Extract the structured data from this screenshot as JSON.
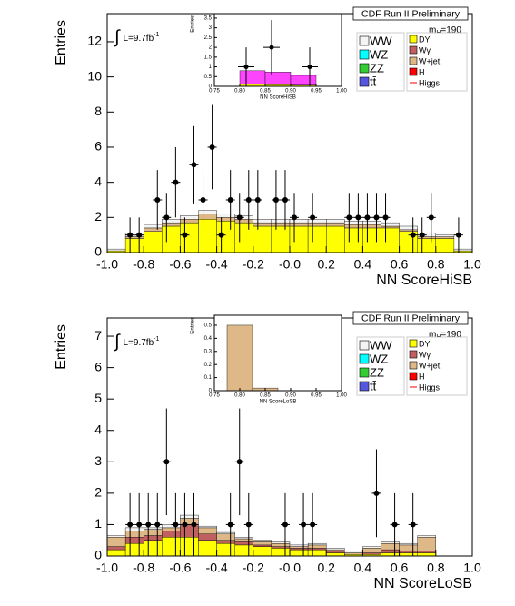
{
  "chart_data": [
    {
      "type": "histogram",
      "title": "CDF Run II Preliminary",
      "x_label": "NN ScoreHiSB",
      "y_label": "Entries",
      "lumi": [
        "∫",
        "L=9.7fb",
        "-1"
      ],
      "mass": [
        "m",
        "H",
        "=190"
      ],
      "xlim": [
        -1,
        1
      ],
      "ylim": [
        0,
        13.6
      ],
      "xticks": [
        {
          "value": -1,
          "label": "-1.0"
        },
        {
          "value": -0.8,
          "label": "-0.8"
        },
        {
          "value": -0.6,
          "label": "-0.6"
        },
        {
          "value": -0.4,
          "label": "-0.4"
        },
        {
          "value": -0.2,
          "label": "-0.2"
        },
        {
          "value": 0,
          "label": "-0.0"
        },
        {
          "value": 0.2,
          "label": "0.2"
        },
        {
          "value": 0.4,
          "label": "0.4"
        },
        {
          "value": 0.6,
          "label": "0.6"
        },
        {
          "value": 0.8,
          "label": "0.8"
        },
        {
          "value": 1,
          "label": "1.0"
        }
      ],
      "yticks": [
        0,
        2,
        4,
        6,
        8,
        10,
        12
      ],
      "bins": [
        -1,
        -0.9,
        -0.8,
        -0.7,
        -0.6,
        -0.5,
        -0.4,
        -0.3,
        -0.2,
        -0.1,
        0,
        0.1,
        0.2,
        0.3,
        0.4,
        0.5,
        0.6,
        0.7,
        0.8,
        0.9,
        1
      ],
      "series": [
        {
          "name": "DY",
          "color": "#ffff00",
          "values": [
            0.1,
            0.8,
            1.2,
            1.5,
            1.7,
            1.9,
            1.8,
            1.7,
            1.5,
            1.5,
            1.5,
            1.5,
            1.5,
            1.4,
            1.4,
            1.4,
            1.2,
            0.8,
            0.8,
            0.1
          ]
        },
        {
          "name": "Wγ",
          "color": "#c06060",
          "values": [
            0,
            0,
            0,
            0,
            0,
            0,
            0,
            0,
            0,
            0,
            0,
            0,
            0,
            0,
            0,
            0,
            0,
            0,
            0,
            0
          ]
        },
        {
          "name": "W+jet",
          "color": "#deb887",
          "values": [
            0,
            0.1,
            0.2,
            0.2,
            0.2,
            0.3,
            0.2,
            0.2,
            0.2,
            0.2,
            0.2,
            0.2,
            0.2,
            0.2,
            0.2,
            0.1,
            0.1,
            0.1,
            0.1,
            0
          ]
        },
        {
          "name": "H",
          "color": "#ff0000",
          "values": [
            0,
            0,
            0,
            0,
            0,
            0,
            0,
            0,
            0,
            0,
            0,
            0,
            0,
            0,
            0,
            0,
            0,
            0,
            0,
            0
          ]
        },
        {
          "name": "WW",
          "color": "#f4f4f4",
          "values": [
            0.1,
            0.2,
            0.2,
            0.2,
            0.2,
            0.2,
            0.2,
            0.2,
            0.2,
            0.2,
            0.2,
            0.2,
            0.2,
            0.2,
            0.2,
            0.2,
            0.2,
            0.2,
            0.1,
            0.1
          ]
        },
        {
          "name": "WZ",
          "color": "#00ffff",
          "values": [
            0,
            0,
            0,
            0,
            0,
            0,
            0,
            0,
            0,
            0,
            0,
            0,
            0,
            0,
            0,
            0,
            0,
            0,
            0,
            0
          ]
        },
        {
          "name": "ZZ",
          "color": "#33cc33",
          "values": [
            0,
            0,
            0,
            0,
            0,
            0,
            0,
            0,
            0,
            0,
            0,
            0,
            0,
            0,
            0,
            0,
            0,
            0,
            0,
            0
          ]
        },
        {
          "name": "tt̄",
          "color": "#5555dd",
          "values": [
            0,
            0,
            0,
            0,
            0,
            0,
            0,
            0,
            0,
            0,
            0,
            0,
            0,
            0,
            0,
            0,
            0,
            0,
            0,
            0
          ]
        },
        {
          "name": "Higgs",
          "color": "#ff0000",
          "line": true,
          "values": [
            0,
            0,
            0,
            0,
            0,
            0,
            0,
            0,
            0,
            0,
            0,
            0,
            0,
            0,
            0,
            0,
            0,
            0,
            0,
            0
          ]
        }
      ],
      "data": {
        "x": [
          -0.875,
          -0.825,
          -0.725,
          -0.675,
          -0.625,
          -0.575,
          -0.525,
          -0.475,
          -0.425,
          -0.375,
          -0.325,
          -0.275,
          -0.225,
          -0.175,
          -0.075,
          -0.025,
          0.025,
          0.125,
          0.325,
          0.375,
          0.425,
          0.475,
          0.525,
          0.675,
          0.725,
          0.775,
          0.925
        ],
        "values": [
          1,
          1,
          3,
          2,
          4,
          1,
          5,
          3,
          6,
          1,
          3,
          2,
          3,
          3,
          3,
          3,
          2,
          2,
          2,
          2,
          2,
          2,
          2,
          1,
          1,
          2,
          1
        ],
        "errors": [
          1,
          1,
          1.7,
          1.4,
          2,
          1,
          2.2,
          1.7,
          2.4,
          1,
          1.7,
          1.4,
          1.7,
          1.7,
          1.7,
          1.7,
          1.4,
          1.4,
          1.4,
          1.4,
          1.4,
          1.4,
          1.4,
          1,
          1,
          1.4,
          1
        ]
      }
    },
    {
      "type": "histogram",
      "x_label": "NN ScoreHiSB",
      "y_label": "Entries",
      "xlim": [
        0.75,
        1
      ],
      "ylim": [
        0,
        3.73
      ],
      "xticks": [
        0.75,
        {
          "value": 0.8,
          "label": "0.80"
        },
        0.85,
        {
          "value": 0.9,
          "label": "0.90"
        },
        0.95,
        {
          "value": 1,
          "label": "1.00"
        }
      ],
      "yticks": [
        0,
        0.5,
        1,
        1.5,
        2,
        2.5,
        3,
        3.5
      ],
      "bins": [
        0.8,
        0.85,
        0.9,
        0.95
      ],
      "series": [
        {
          "color": "#ffff00",
          "values": [
            0.1,
            0.08,
            0.06
          ]
        },
        {
          "color": "#ff44ff",
          "values": [
            0.7,
            0.65,
            0.5
          ]
        }
      ],
      "data": {
        "x": [
          0.8125,
          0.8625,
          0.9375
        ],
        "values": [
          1,
          2,
          1
        ],
        "errors": [
          1,
          1.4,
          1
        ]
      }
    },
    {
      "type": "histogram",
      "title": "CDF Run II Preliminary",
      "x_label": "NN ScoreLoSB",
      "y_label": "Entries",
      "lumi": [
        "∫",
        "L=9.7fb",
        "-1"
      ],
      "mass": [
        "m",
        "H",
        "=190"
      ],
      "xlim": [
        -1,
        1
      ],
      "ylim": [
        0,
        7.58
      ],
      "xticks": [
        {
          "value": -1,
          "label": "-1.0"
        },
        {
          "value": -0.8,
          "label": "-0.8"
        },
        {
          "value": -0.6,
          "label": "-0.6"
        },
        {
          "value": -0.4,
          "label": "-0.4"
        },
        {
          "value": -0.2,
          "label": "-0.2"
        },
        {
          "value": 0,
          "label": "-0.0"
        },
        {
          "value": 0.2,
          "label": "0.2"
        },
        {
          "value": 0.4,
          "label": "0.4"
        },
        {
          "value": 0.6,
          "label": "0.6"
        },
        {
          "value": 0.8,
          "label": "0.8"
        },
        {
          "value": 1,
          "label": "1.0"
        }
      ],
      "yticks": [
        0,
        1,
        2,
        3,
        4,
        5,
        6,
        7
      ],
      "bins": [
        -1,
        -0.9,
        -0.8,
        -0.7,
        -0.6,
        -0.5,
        -0.4,
        -0.3,
        -0.2,
        -0.1,
        0,
        0.1,
        0.2,
        0.3,
        0.4,
        0.5,
        0.6,
        0.7,
        0.8,
        0.9,
        1
      ],
      "series": [
        {
          "name": "DY",
          "color": "#ffff00",
          "values": [
            0.2,
            0.4,
            0.5,
            0.6,
            0.6,
            0.5,
            0.4,
            0.35,
            0.3,
            0.25,
            0.2,
            0.2,
            0.1,
            0.05,
            0.05,
            0.1,
            0.1,
            0.1,
            0,
            0
          ]
        },
        {
          "name": "Wγ",
          "color": "#c06060",
          "values": [
            0.1,
            0.2,
            0.15,
            0.2,
            0.4,
            0.2,
            0.1,
            0.1,
            0.05,
            0.05,
            0.05,
            0.05,
            0.05,
            0,
            0.05,
            0.1,
            0.05,
            0.05,
            0,
            0
          ]
        },
        {
          "name": "W+jet",
          "color": "#deb887",
          "values": [
            0.3,
            0.2,
            0.2,
            0.1,
            0.2,
            0.2,
            0.2,
            0.1,
            0.1,
            0.1,
            0.05,
            0.1,
            0.05,
            0.05,
            0.15,
            0.2,
            0.2,
            0.45,
            0,
            0
          ]
        },
        {
          "name": "H",
          "color": "#ff0000",
          "values": [
            0,
            0,
            0,
            0,
            0,
            0,
            0,
            0,
            0,
            0,
            0,
            0,
            0,
            0,
            0,
            0,
            0,
            0,
            0,
            0
          ]
        },
        {
          "name": "WW",
          "color": "#f4f4f4",
          "values": [
            0.05,
            0.1,
            0.05,
            0.1,
            0.1,
            0.05,
            0.05,
            0.05,
            0.05,
            0.05,
            0.05,
            0.05,
            0.05,
            0.05,
            0.05,
            0.05,
            0.05,
            0.05,
            0,
            0
          ]
        },
        {
          "name": "WZ",
          "color": "#00ffff",
          "values": [
            0,
            0,
            0,
            0,
            0,
            0,
            0,
            0,
            0,
            0,
            0,
            0,
            0,
            0,
            0,
            0,
            0,
            0,
            0,
            0
          ]
        },
        {
          "name": "ZZ",
          "color": "#33cc33",
          "values": [
            0,
            0,
            0,
            0,
            0,
            0,
            0,
            0,
            0,
            0,
            0,
            0,
            0,
            0,
            0,
            0,
            0,
            0,
            0,
            0
          ]
        },
        {
          "name": "tt̄",
          "color": "#5555dd",
          "values": [
            0,
            0,
            0,
            0,
            0,
            0,
            0,
            0,
            0,
            0,
            0,
            0,
            0,
            0,
            0,
            0,
            0,
            0,
            0,
            0
          ]
        },
        {
          "name": "Higgs",
          "color": "#ff0000",
          "line": true,
          "values": [
            0,
            0,
            0,
            0,
            0,
            0,
            0,
            0,
            0,
            0,
            0,
            0,
            0,
            0,
            0,
            0,
            0,
            0,
            0,
            0
          ]
        }
      ],
      "data": {
        "x": [
          -0.875,
          -0.825,
          -0.775,
          -0.725,
          -0.675,
          -0.625,
          -0.575,
          -0.525,
          -0.325,
          -0.275,
          -0.225,
          -0.025,
          0.075,
          0.125,
          0.475,
          0.575,
          0.675
        ],
        "values": [
          1,
          1,
          1,
          1,
          3,
          1,
          1,
          1,
          1,
          3,
          1,
          1,
          1,
          1,
          2,
          1,
          1
        ],
        "errors": [
          1,
          1,
          1,
          1,
          1.7,
          1,
          1,
          1,
          1,
          1.7,
          1,
          1,
          1,
          1,
          1.4,
          1,
          1
        ]
      }
    },
    {
      "type": "histogram",
      "x_label": "NN ScoreLoSB",
      "y_label": "Entries",
      "xlim": [
        0.75,
        1
      ],
      "ylim": [
        0,
        0.576
      ],
      "xticks": [
        0.75,
        {
          "value": 0.8,
          "label": "0.80"
        },
        0.85,
        {
          "value": 0.9,
          "label": "0.90"
        },
        0.95,
        {
          "value": 1,
          "label": "1.00"
        }
      ],
      "yticks": [
        0,
        0.1,
        0.2,
        0.3,
        0.4,
        0.5
      ],
      "bins": [
        0.775,
        0.825,
        0.875
      ],
      "series": [
        {
          "color": "#deb887",
          "values": [
            0.5,
            0.02
          ]
        }
      ]
    }
  ]
}
